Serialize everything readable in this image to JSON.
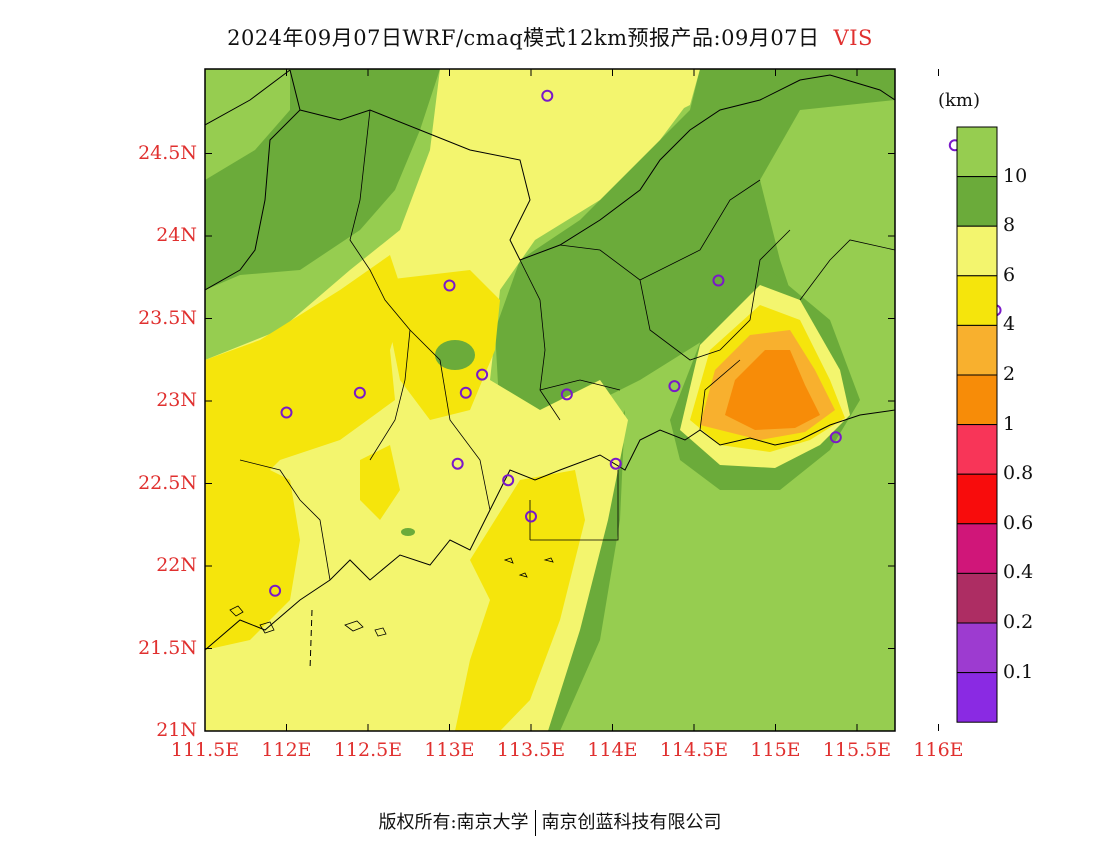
{
  "header": {
    "title": "2024年09月07日WRF/cmaq模式12km预报产品:09月07日",
    "variable": "VIS"
  },
  "axes": {
    "lat_ticks": [
      "24.5N",
      "24N",
      "23.5N",
      "23N",
      "22.5N",
      "22N",
      "21.5N",
      "21N"
    ],
    "lon_ticks": [
      "111.5E",
      "112E",
      "112.5E",
      "113E",
      "113.5E",
      "114E",
      "114.5E",
      "115E",
      "115.5E",
      "116E"
    ]
  },
  "colorbar": {
    "units": "(km)",
    "labels": [
      "10",
      "8",
      "6",
      "4",
      "2",
      "1",
      "0.8",
      "0.6",
      "0.4",
      "0.2",
      "0.1"
    ],
    "colors": [
      "#96cd50",
      "#6bab3a",
      "#f3f56e",
      "#f5e50c",
      "#f8b02e",
      "#f78c08",
      "#f83558",
      "#f80c0c",
      "#d01679",
      "#ad2d63",
      "#9d3bd0",
      "#8a2ae3"
    ]
  },
  "chart_data": {
    "type": "heatmap",
    "variable": "VIS",
    "units": "km",
    "lat_range": [
      21,
      25
    ],
    "lon_range": [
      111.5,
      116.5
    ],
    "stations": [
      {
        "lon": 113.6,
        "lat": 24.85
      },
      {
        "lon": 116.1,
        "lat": 24.55
      },
      {
        "lon": 113.0,
        "lat": 23.7
      },
      {
        "lon": 114.65,
        "lat": 23.73
      },
      {
        "lon": 116.35,
        "lat": 23.55
      },
      {
        "lon": 113.2,
        "lat": 23.16
      },
      {
        "lon": 113.1,
        "lat": 23.05
      },
      {
        "lon": 112.45,
        "lat": 23.05
      },
      {
        "lon": 112.0,
        "lat": 22.93
      },
      {
        "lon": 113.72,
        "lat": 23.04
      },
      {
        "lon": 114.38,
        "lat": 23.09
      },
      {
        "lon": 113.05,
        "lat": 22.62
      },
      {
        "lon": 113.36,
        "lat": 22.52
      },
      {
        "lon": 114.02,
        "lat": 22.62
      },
      {
        "lon": 113.5,
        "lat": 22.3
      },
      {
        "lon": 111.93,
        "lat": 21.85
      },
      {
        "lon": 115.37,
        "lat": 22.78
      }
    ],
    "legend": "right"
  },
  "footer": {
    "left": "版权所有:南京大学",
    "right": "南京创蓝科技有限公司"
  },
  "colors": {
    "tick_label": "#e0302f",
    "station_marker": "#7a18c8"
  }
}
